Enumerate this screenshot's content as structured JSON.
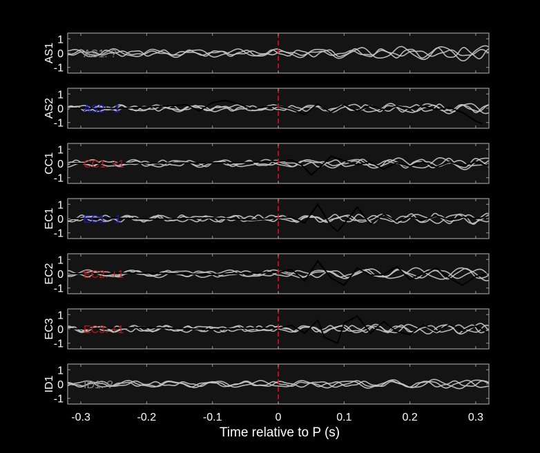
{
  "chart_data": {
    "type": "line",
    "xlabel": "Time relative to P (s)",
    "xlim": [
      -0.32,
      0.32
    ],
    "xticks": [
      -0.3,
      -0.2,
      -0.1,
      0,
      0.1,
      0.2,
      0.3
    ],
    "xtick_labels": [
      "-0.3",
      "-0.2",
      "-0.1",
      "0",
      "0.1",
      "0.2",
      "0.3"
    ],
    "ylim": [
      -1.4,
      1.4
    ],
    "yticks": [
      1,
      0,
      -1
    ],
    "ytick_labels": [
      "1",
      "0",
      "-1"
    ],
    "reference_line": {
      "x": 0,
      "color": "#e01010",
      "style": "dashed"
    },
    "colors": {
      "background": "#000000",
      "panel": "#141414",
      "frame": "#9a9a9a",
      "trace_gray": "#c8c8c8",
      "trace_black": "#000000",
      "text": "#ffffff"
    },
    "panels": [
      {
        "station": "AS1",
        "label": "AS1: ?",
        "label_color": "#8a8a8a",
        "has_trace": false,
        "gray": [
          {
            "amp": 0.1,
            "freq": 20,
            "phase": 0.3
          },
          {
            "amp": 0.25,
            "freq": 16,
            "phase": 1.6
          },
          {
            "amp": 0.18,
            "freq": 24,
            "phase": 2.9
          }
        ],
        "gray_growth": 3.5
      },
      {
        "station": "AS2",
        "label": "AS2: -1",
        "label_color": "#1a1ac8",
        "has_trace": true,
        "trace": [
          [
            -0.32,
            0
          ],
          [
            -0.24,
            -0.02
          ],
          [
            -0.2,
            0.08
          ],
          [
            -0.16,
            0.18
          ],
          [
            -0.14,
            0.25
          ],
          [
            -0.12,
            -0.2
          ],
          [
            -0.1,
            0.4
          ],
          [
            -0.08,
            0.55
          ],
          [
            -0.06,
            0.3
          ],
          [
            -0.04,
            -0.05
          ],
          [
            -0.02,
            0.1
          ],
          [
            0.0,
            0.15
          ],
          [
            0.02,
            -0.05
          ],
          [
            0.04,
            -0.45
          ],
          [
            0.06,
            0.3
          ],
          [
            0.08,
            -0.3
          ],
          [
            0.1,
            0.25
          ],
          [
            0.12,
            -0.2
          ],
          [
            0.14,
            0.2
          ],
          [
            0.16,
            -0.1
          ],
          [
            0.18,
            0.15
          ],
          [
            0.2,
            -0.05
          ],
          [
            0.22,
            0.15
          ],
          [
            0.24,
            -0.1
          ],
          [
            0.26,
            0.05
          ],
          [
            0.28,
            -0.3
          ],
          [
            0.3,
            -0.9
          ],
          [
            0.31,
            -1.1
          ]
        ],
        "gray": [
          {
            "amp": 0.12,
            "freq": 22,
            "phase": 0.8
          },
          {
            "amp": 0.2,
            "freq": 17,
            "phase": 2.2
          },
          {
            "amp": 0.15,
            "freq": 27,
            "phase": 4.0
          }
        ],
        "gray_growth": 2.5
      },
      {
        "station": "CC1",
        "label": "CC1: +1",
        "label_color": "#c01818",
        "has_trace": true,
        "trace": [
          [
            -0.32,
            0
          ],
          [
            -0.2,
            0.02
          ],
          [
            -0.1,
            0.04
          ],
          [
            -0.06,
            0.05
          ],
          [
            -0.02,
            0.12
          ],
          [
            0.0,
            0.15
          ],
          [
            0.02,
            0.25
          ],
          [
            0.035,
            -0.1
          ],
          [
            0.05,
            -0.8
          ],
          [
            0.065,
            -0.2
          ],
          [
            0.08,
            0.5
          ],
          [
            0.1,
            0.2
          ],
          [
            0.12,
            -0.1
          ],
          [
            0.14,
            0.1
          ],
          [
            0.16,
            -0.4
          ],
          [
            0.18,
            0.05
          ],
          [
            0.2,
            -0.2
          ],
          [
            0.22,
            0.1
          ],
          [
            0.24,
            -0.25
          ],
          [
            0.26,
            0.1
          ],
          [
            0.28,
            -0.15
          ],
          [
            0.3,
            0.1
          ],
          [
            0.32,
            -0.2
          ]
        ],
        "gray": [
          {
            "amp": 0.1,
            "freq": 19,
            "phase": 0.5
          },
          {
            "amp": 0.18,
            "freq": 23,
            "phase": 1.9
          },
          {
            "amp": 0.22,
            "freq": 15,
            "phase": 3.3
          }
        ],
        "gray_growth": 2.8
      },
      {
        "station": "EC1",
        "label": "EC1: -1",
        "label_color": "#1a1ac8",
        "has_trace": true,
        "trace": [
          [
            -0.32,
            0
          ],
          [
            -0.25,
            0.04
          ],
          [
            -0.18,
            -0.05
          ],
          [
            -0.1,
            0.05
          ],
          [
            -0.04,
            -0.1
          ],
          [
            0.0,
            0.05
          ],
          [
            0.02,
            0.1
          ],
          [
            0.04,
            -0.3
          ],
          [
            0.06,
            1.0
          ],
          [
            0.08,
            -0.5
          ],
          [
            0.09,
            -0.9
          ],
          [
            0.11,
            0.2
          ],
          [
            0.12,
            0.8
          ],
          [
            0.14,
            -0.4
          ],
          [
            0.16,
            0.3
          ],
          [
            0.18,
            -0.2
          ],
          [
            0.2,
            0.1
          ],
          [
            0.22,
            -0.1
          ],
          [
            0.24,
            0.2
          ],
          [
            0.26,
            -0.1
          ],
          [
            0.28,
            0.1
          ],
          [
            0.3,
            0.0
          ],
          [
            0.32,
            0.1
          ]
        ],
        "gray": [
          {
            "amp": 0.12,
            "freq": 21,
            "phase": 1.1
          },
          {
            "amp": 0.18,
            "freq": 18,
            "phase": 2.6
          },
          {
            "amp": 0.2,
            "freq": 26,
            "phase": 0.2
          }
        ],
        "gray_growth": 2.6
      },
      {
        "station": "EC2",
        "label": "EC2: +1",
        "label_color": "#c01818",
        "has_trace": true,
        "trace": [
          [
            -0.32,
            0
          ],
          [
            -0.2,
            0.05
          ],
          [
            -0.1,
            -0.05
          ],
          [
            -0.04,
            0.05
          ],
          [
            0.0,
            0.1
          ],
          [
            0.02,
            0.3
          ],
          [
            0.04,
            -0.5
          ],
          [
            0.06,
            0.9
          ],
          [
            0.08,
            -0.3
          ],
          [
            0.1,
            -0.8
          ],
          [
            0.12,
            0.4
          ],
          [
            0.14,
            -0.1
          ],
          [
            0.16,
            -0.05
          ],
          [
            0.18,
            0.5
          ],
          [
            0.2,
            -0.4
          ],
          [
            0.22,
            0.0
          ],
          [
            0.24,
            0.4
          ],
          [
            0.26,
            -0.3
          ],
          [
            0.28,
            -0.8
          ],
          [
            0.3,
            -0.2
          ],
          [
            0.32,
            0.05
          ]
        ],
        "gray": [
          {
            "amp": 0.15,
            "freq": 17,
            "phase": 0.6
          },
          {
            "amp": 0.22,
            "freq": 14,
            "phase": 2.0
          },
          {
            "amp": 0.18,
            "freq": 20,
            "phase": 3.7
          }
        ],
        "gray_growth": 3.2
      },
      {
        "station": "EC3",
        "label": "EC3: +1",
        "label_color": "#c01818",
        "has_trace": true,
        "trace": [
          [
            -0.32,
            0
          ],
          [
            -0.2,
            0.1
          ],
          [
            -0.1,
            -0.05
          ],
          [
            -0.05,
            0.05
          ],
          [
            0.0,
            0.05
          ],
          [
            0.02,
            0.25
          ],
          [
            0.04,
            -0.3
          ],
          [
            0.06,
            0.6
          ],
          [
            0.07,
            -0.6
          ],
          [
            0.09,
            -1.0
          ],
          [
            0.1,
            0.4
          ],
          [
            0.12,
            0.9
          ],
          [
            0.14,
            -0.3
          ],
          [
            0.16,
            0.5
          ],
          [
            0.18,
            -0.2
          ],
          [
            0.2,
            -0.4
          ],
          [
            0.22,
            0.3
          ],
          [
            0.24,
            -0.2
          ],
          [
            0.26,
            0.3
          ],
          [
            0.28,
            -0.1
          ],
          [
            0.3,
            0.2
          ],
          [
            0.32,
            -0.3
          ]
        ],
        "gray": [
          {
            "amp": 0.14,
            "freq": 22,
            "phase": 1.4
          },
          {
            "amp": 0.2,
            "freq": 19,
            "phase": 2.8
          },
          {
            "amp": 0.16,
            "freq": 28,
            "phase": 0.4
          }
        ],
        "gray_growth": 2.4
      },
      {
        "station": "ID1",
        "label": "ID1: ?",
        "label_color": "#8a8a8a",
        "has_trace": false,
        "gray": [
          {
            "amp": 0.16,
            "freq": 18,
            "phase": 0.9
          },
          {
            "amp": 0.12,
            "freq": 22,
            "phase": 2.4
          },
          {
            "amp": 0.2,
            "freq": 15,
            "phase": 4.2
          }
        ],
        "gray_growth": 1.8
      }
    ]
  }
}
